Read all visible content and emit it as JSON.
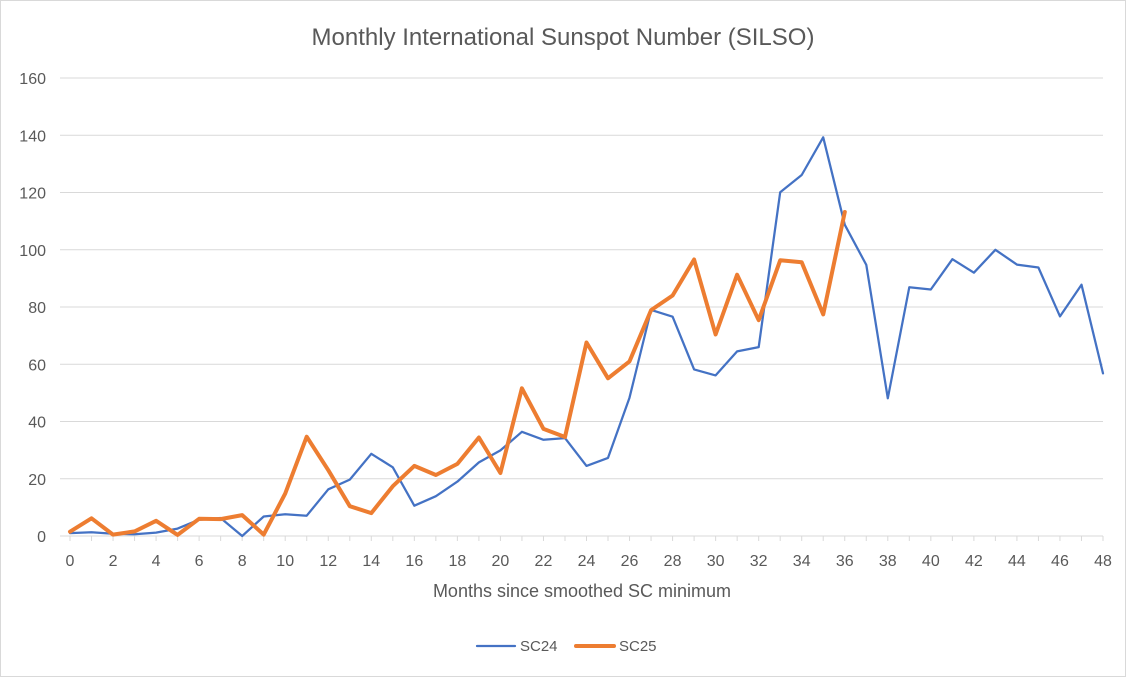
{
  "chart_data": {
    "type": "line",
    "title": "Monthly International Sunspot Number (SILSO)",
    "xlabel": "Months since smoothed SC minimum",
    "ylabel": "",
    "xlim": [
      0,
      48
    ],
    "ylim": [
      0,
      160
    ],
    "y_ticks": [
      0,
      20,
      40,
      60,
      80,
      100,
      120,
      140,
      160
    ],
    "x_ticks": [
      0,
      2,
      4,
      6,
      8,
      10,
      12,
      14,
      16,
      18,
      20,
      22,
      24,
      26,
      28,
      30,
      32,
      34,
      36,
      38,
      40,
      42,
      44,
      46,
      48
    ],
    "grid": true,
    "legend_position": "bottom",
    "series": [
      {
        "name": "SC24",
        "color": "#4472c4",
        "x": [
          0,
          1,
          2,
          3,
          4,
          5,
          6,
          7,
          8,
          9,
          10,
          11,
          12,
          13,
          14,
          15,
          16,
          17,
          18,
          19,
          20,
          21,
          22,
          23,
          24,
          25,
          26,
          27,
          28,
          29,
          30,
          31,
          32,
          33,
          34,
          35,
          36,
          37,
          38,
          39,
          40,
          41,
          42,
          43,
          44,
          45,
          46,
          47,
          48
        ],
        "values": [
          1.0,
          1.3,
          0.8,
          0.6,
          1.2,
          2.6,
          5.7,
          6.3,
          0.0,
          6.8,
          7.6,
          7.1,
          16.3,
          19.7,
          28.7,
          24.0,
          10.6,
          13.9,
          19.0,
          25.7,
          29.9,
          36.4,
          33.6,
          34.2,
          24.5,
          27.3,
          48.3,
          79.0,
          76.6,
          58.2,
          56.1,
          64.5,
          66.0,
          120.1,
          126.1,
          139.3,
          108.7,
          94.7,
          48.1,
          86.9,
          86.1,
          96.7,
          92.0,
          100.0,
          94.8,
          93.8,
          76.7,
          87.8,
          56.8
        ]
      },
      {
        "name": "SC25",
        "color": "#ed7d31",
        "x": [
          0,
          1,
          2,
          3,
          4,
          5,
          6,
          7,
          8,
          9,
          10,
          11,
          12,
          13,
          14,
          15,
          16,
          17,
          18,
          19,
          20,
          21,
          22,
          23,
          24,
          25,
          26,
          27,
          28,
          29,
          30,
          31,
          32,
          33,
          34,
          35,
          36
        ],
        "values": [
          1.5,
          6.2,
          0.5,
          1.6,
          5.3,
          0.4,
          6.0,
          5.9,
          7.3,
          0.5,
          14.8,
          34.7,
          23.0,
          10.4,
          8.0,
          17.4,
          24.5,
          21.3,
          25.2,
          34.4,
          22.0,
          51.6,
          37.4,
          34.6,
          67.6,
          55.1,
          61.0,
          78.9,
          84.0,
          96.6,
          70.4,
          91.3,
          75.4,
          96.3,
          95.6,
          77.4,
          113.2
        ]
      }
    ]
  }
}
